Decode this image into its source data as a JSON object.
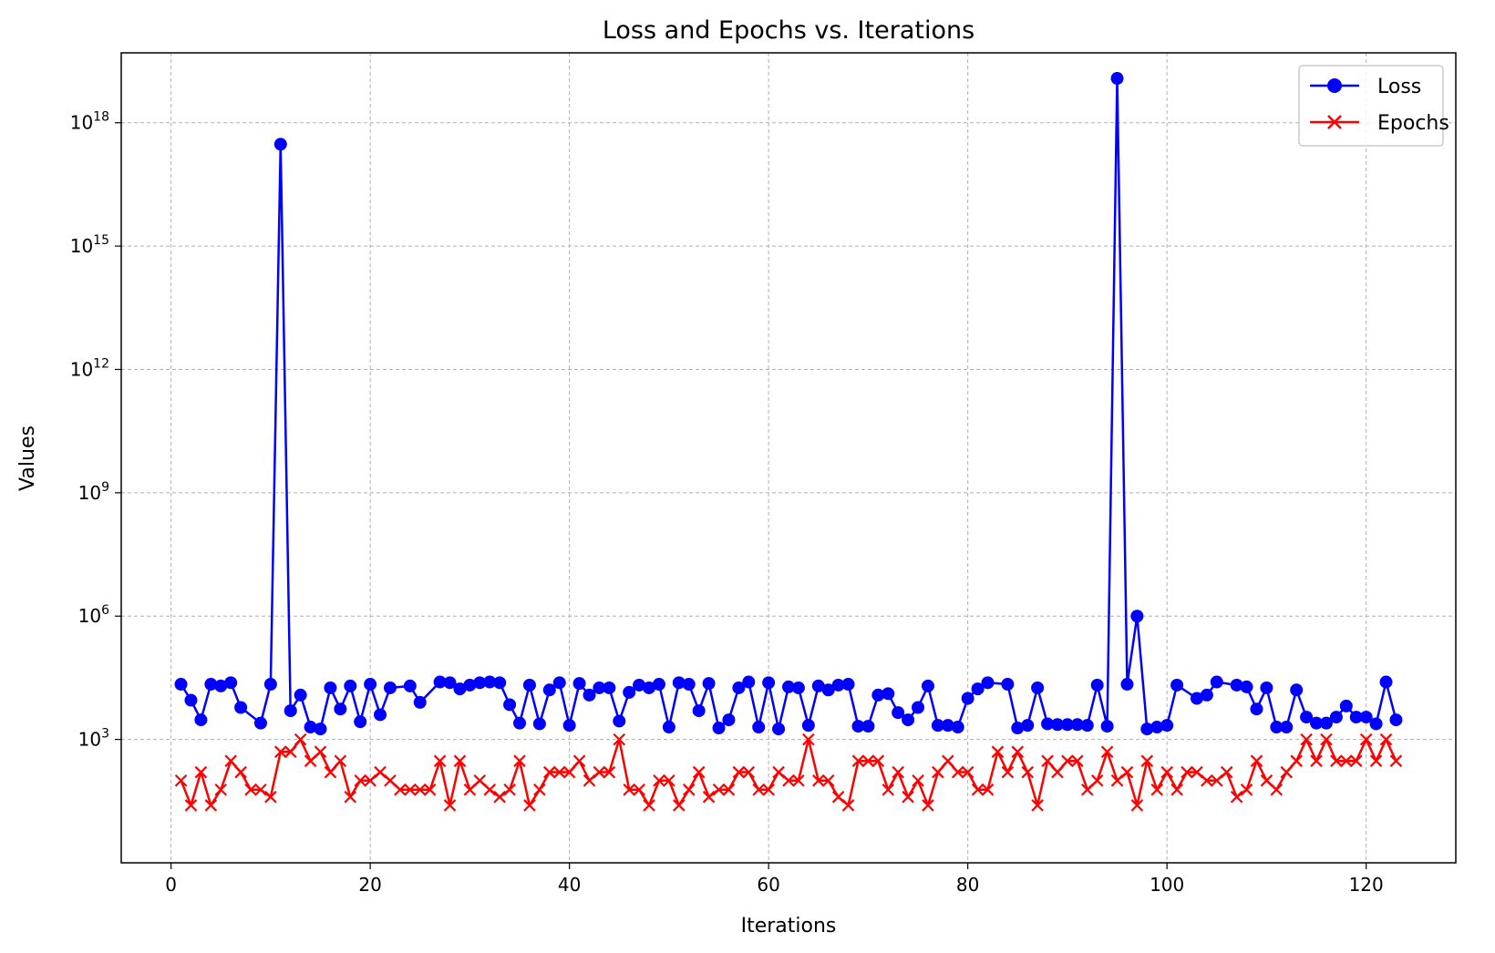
{
  "chart_data": {
    "type": "line",
    "title": "Loss and Epochs vs. Iterations",
    "xlabel": "Iterations",
    "ylabel": "Values",
    "yscale": "log",
    "xlim": [
      -5,
      129
    ],
    "ylim_log10": [
      0,
      19.7
    ],
    "xticks": [
      0,
      20,
      40,
      60,
      80,
      100,
      120
    ],
    "yticks_log10": [
      3,
      6,
      9,
      12,
      15,
      18
    ],
    "ytick_base": "10",
    "grid": true,
    "legend_position": "top-right",
    "colors": {
      "Loss": "#0000ff",
      "Epochs": "#ff0000"
    },
    "series": [
      {
        "name": "Loss",
        "marker": "circle",
        "x": [
          1,
          2,
          3,
          4,
          5,
          6,
          7,
          9,
          10,
          11,
          12,
          13,
          14,
          15,
          16,
          17,
          18,
          19,
          20,
          21,
          22,
          24,
          25,
          27,
          28,
          29,
          30,
          31,
          32,
          33,
          34,
          35,
          36,
          37,
          38,
          39,
          40,
          41,
          42,
          43,
          44,
          45,
          46,
          47,
          48,
          49,
          50,
          51,
          52,
          53,
          54,
          55,
          56,
          57,
          58,
          59,
          60,
          61,
          62,
          63,
          64,
          65,
          66,
          67,
          68,
          69,
          70,
          71,
          72,
          73,
          74,
          75,
          76,
          77,
          78,
          79,
          80,
          81,
          82,
          84,
          85,
          86,
          87,
          88,
          89,
          90,
          91,
          92,
          93,
          94,
          95,
          96,
          97,
          98,
          99,
          100,
          101,
          103,
          104,
          105,
          107,
          108,
          109,
          110,
          111,
          112,
          113,
          114,
          115,
          116,
          117,
          118,
          119,
          120,
          121,
          122,
          123
        ],
        "y": [
          22000,
          9000,
          3000,
          22000,
          20000,
          24000,
          6000,
          2500,
          22000,
          3e+17,
          5000,
          12000,
          2000,
          1800,
          18000,
          5500,
          20000,
          2700,
          22000,
          4000,
          18000,
          20000,
          8000,
          25000,
          24000,
          17000,
          21000,
          24000,
          25000,
          24000,
          7000,
          2500,
          21000,
          2400,
          16000,
          24000,
          2200,
          23000,
          12000,
          18000,
          18000,
          2800,
          14000,
          21000,
          18000,
          22000,
          2000,
          24000,
          22000,
          5000,
          23000,
          1900,
          3000,
          18000,
          25000,
          2000,
          24000,
          1800,
          19000,
          18000,
          2200,
          20000,
          16000,
          21000,
          22000,
          2100,
          2100,
          12000,
          13000,
          4500,
          3000,
          6000,
          20000,
          2200,
          2200,
          2000,
          10000,
          17000,
          24000,
          22000,
          1900,
          2200,
          18000,
          2400,
          2300,
          2300,
          2300,
          2200,
          21000,
          2100,
          1.2e+19,
          22000,
          1000000.0,
          1800,
          2000,
          2200,
          21000,
          10000,
          12000,
          25000,
          21000,
          19000,
          5500,
          18000,
          2000,
          2000,
          16000,
          3500,
          2500,
          2500,
          3500,
          6500,
          3500,
          3500,
          2400,
          25000,
          3000
        ]
      },
      {
        "name": "Epochs",
        "marker": "x",
        "x": [
          1,
          2,
          3,
          4,
          5,
          6,
          7,
          8,
          9,
          10,
          11,
          12,
          13,
          14,
          15,
          16,
          17,
          18,
          19,
          20,
          21,
          22,
          23,
          24,
          25,
          26,
          27,
          28,
          29,
          30,
          31,
          32,
          33,
          34,
          35,
          36,
          37,
          38,
          39,
          40,
          41,
          42,
          43,
          44,
          45,
          46,
          47,
          48,
          49,
          50,
          51,
          52,
          53,
          54,
          55,
          56,
          57,
          58,
          59,
          60,
          61,
          62,
          63,
          64,
          65,
          66,
          67,
          68,
          69,
          70,
          71,
          72,
          73,
          74,
          75,
          76,
          77,
          78,
          79,
          80,
          81,
          82,
          83,
          84,
          85,
          86,
          87,
          88,
          89,
          90,
          91,
          92,
          93,
          94,
          95,
          96,
          97,
          98,
          99,
          100,
          101,
          102,
          103,
          104,
          105,
          106,
          107,
          108,
          109,
          110,
          111,
          112,
          113,
          114,
          115,
          116,
          117,
          118,
          119,
          120,
          121,
          122,
          123
        ],
        "y": [
          100,
          25,
          160,
          25,
          60,
          300,
          160,
          60,
          60,
          40,
          500,
          500,
          1000,
          300,
          500,
          160,
          300,
          40,
          100,
          100,
          160,
          100,
          60,
          60,
          60,
          60,
          300,
          25,
          300,
          60,
          100,
          60,
          40,
          60,
          300,
          25,
          60,
          160,
          160,
          160,
          300,
          100,
          160,
          160,
          1000,
          60,
          60,
          25,
          100,
          100,
          25,
          60,
          160,
          40,
          60,
          60,
          160,
          160,
          60,
          60,
          160,
          100,
          100,
          1000,
          100,
          100,
          40,
          25,
          300,
          300,
          300,
          60,
          160,
          40,
          100,
          25,
          160,
          300,
          160,
          160,
          60,
          60,
          500,
          160,
          500,
          160,
          25,
          300,
          160,
          300,
          300,
          60,
          100,
          500,
          100,
          160,
          25,
          300,
          60,
          160,
          60,
          160,
          160,
          100,
          100,
          160,
          40,
          60,
          300,
          100,
          60,
          160,
          300,
          1000,
          300,
          1000,
          300,
          300,
          300,
          1000,
          300,
          1000,
          300
        ]
      }
    ]
  }
}
